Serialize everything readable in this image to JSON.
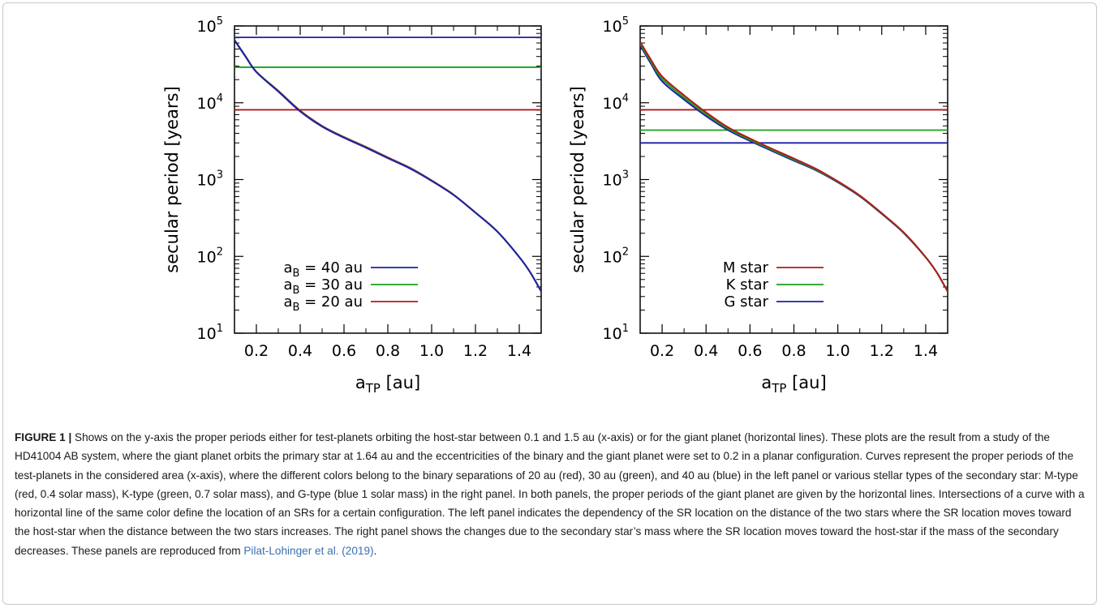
{
  "chart_data": [
    {
      "type": "line",
      "panel": "left",
      "xlabel": "a",
      "xlabel_sub": "TP",
      "xlabel_unit": " [au]",
      "ylabel": "secular period [years]",
      "xlim": [
        0.1,
        1.5
      ],
      "ylim": [
        10,
        100000
      ],
      "yscale": "log",
      "x_ticks": [
        0.2,
        0.4,
        0.6,
        0.8,
        1.0,
        1.2,
        1.4
      ],
      "x_tick_labels": [
        "0.2",
        "0.4",
        "0.6",
        "0.8",
        "1.0",
        "1.2",
        "1.4"
      ],
      "y_ticks": [
        10,
        100,
        1000,
        10000,
        100000
      ],
      "y_tick_base": "10",
      "y_tick_exps": [
        "1",
        "2",
        "3",
        "4",
        "5"
      ],
      "grid": false,
      "legend_position": "bottom-left",
      "curve_x": [
        0.1,
        0.15,
        0.2,
        0.3,
        0.4,
        0.5,
        0.6,
        0.7,
        0.8,
        0.9,
        1.0,
        1.1,
        1.2,
        1.3,
        1.4,
        1.45,
        1.5
      ],
      "series": [
        {
          "legend_pre": "a",
          "legend_sub": "B",
          "legend_post": " = 40 au",
          "color": "#1f1fa8",
          "hline": 71000,
          "curve": [
            65000,
            40000,
            25000,
            14000,
            7700,
            4900,
            3500,
            2600,
            1900,
            1400,
            960,
            630,
            370,
            210,
            98,
            62,
            35
          ]
        },
        {
          "legend_pre": "a",
          "legend_sub": "B",
          "legend_post": " = 30 au",
          "color": "#1aa01a",
          "hline": 29000,
          "curve": [
            65500,
            40300,
            25200,
            14100,
            7750,
            4930,
            3520,
            2620,
            1910,
            1410,
            965,
            632,
            371,
            210,
            98,
            62,
            35
          ]
        },
        {
          "legend_pre": "a",
          "legend_sub": "B",
          "legend_post": " = 20 au",
          "color": "#b01a1a",
          "hline": 8100,
          "curve": [
            66000,
            40600,
            25400,
            14300,
            7900,
            5000,
            3580,
            2660,
            1940,
            1430,
            975,
            638,
            373,
            211,
            98,
            62,
            35
          ]
        }
      ]
    },
    {
      "type": "line",
      "panel": "right",
      "xlabel": "a",
      "xlabel_sub": "TP",
      "xlabel_unit": " [au]",
      "ylabel": "secular period [years]",
      "xlim": [
        0.1,
        1.5
      ],
      "ylim": [
        10,
        100000
      ],
      "yscale": "log",
      "x_ticks": [
        0.2,
        0.4,
        0.6,
        0.8,
        1.0,
        1.2,
        1.4
      ],
      "x_tick_labels": [
        "0.2",
        "0.4",
        "0.6",
        "0.8",
        "1.0",
        "1.2",
        "1.4"
      ],
      "y_ticks": [
        10,
        100,
        1000,
        10000,
        100000
      ],
      "y_tick_base": "10",
      "y_tick_exps": [
        "1",
        "2",
        "3",
        "4",
        "5"
      ],
      "grid": false,
      "legend_position": "bottom-left",
      "curve_x": [
        0.1,
        0.15,
        0.2,
        0.3,
        0.4,
        0.5,
        0.6,
        0.7,
        0.8,
        0.9,
        1.0,
        1.1,
        1.2,
        1.3,
        1.4,
        1.45,
        1.5
      ],
      "series": [
        {
          "legend_pre": "M star",
          "legend_sub": "",
          "legend_post": "",
          "color": "#b01a1a",
          "hline": 8100,
          "curve": [
            62000,
            36000,
            22000,
            12500,
            7500,
            4800,
            3420,
            2520,
            1880,
            1380,
            950,
            620,
            365,
            205,
            98,
            62,
            35
          ]
        },
        {
          "legend_pre": "K star",
          "legend_sub": "",
          "legend_post": "",
          "color": "#1aa01a",
          "hline": 4400,
          "curve": [
            59000,
            34000,
            20500,
            11700,
            7100,
            4600,
            3300,
            2440,
            1820,
            1350,
            935,
            612,
            361,
            203,
            97,
            62,
            35
          ]
        },
        {
          "legend_pre": "G star",
          "legend_sub": "",
          "legend_post": "",
          "color": "#1f1fa8",
          "hline": 3000,
          "curve": [
            56000,
            32000,
            19000,
            11000,
            6700,
            4400,
            3180,
            2360,
            1760,
            1320,
            920,
            605,
            357,
            201,
            97,
            62,
            35
          ]
        }
      ]
    }
  ],
  "caption": {
    "label": "FIGURE 1 |",
    "text": " Shows on the y-axis the proper periods either for test-planets orbiting the host-star between 0.1 and 1.5 au (x-axis) or for the giant planet (horizontal lines). These plots are the result from a study of the HD41004 AB system, where the giant planet orbits the primary star at 1.64 au and the eccentricities of the binary and the giant planet were set to 0.2 in a planar configuration. Curves represent the proper periods of the test-planets in the considered area (x-axis), where the different colors belong to the binary separations of 20 au (red), 30 au (green), and 40 au (blue) in the left panel or various stellar types of the secondary star: M-type (red, 0.4 solar mass), K-type (green, 0.7 solar mass), and G-type (blue 1 solar mass) in the right panel. In both panels, the proper periods of the giant planet are given by the horizontal lines. Intersections of a curve with a horizontal line of the same color define the location of an SRs for a certain configuration. The left panel indicates the dependency of the SR location on the distance of the two stars where the SR location moves toward the host-star when the distance between the two stars increases. The right panel shows the changes due to the secondary star’s mass where the SR location moves toward the host-star if the mass of the secondary decreases. These panels are reproduced from ",
    "ref": "Pilat-Lohinger et al. (2019)",
    "end": "."
  }
}
